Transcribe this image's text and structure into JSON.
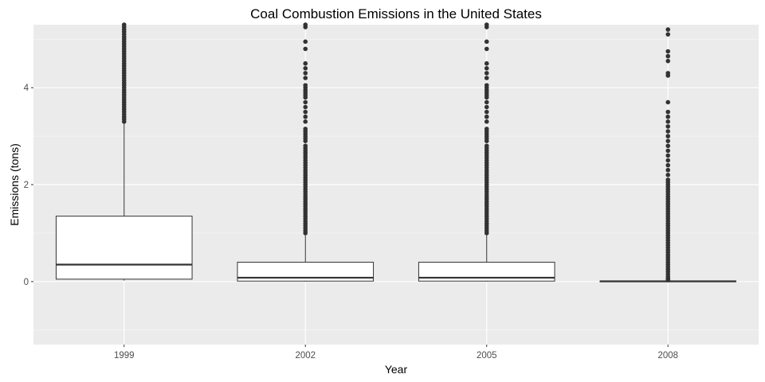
{
  "chart_data": {
    "type": "box",
    "title": "Coal Combustion Emissions in the United States",
    "xlabel": "Year",
    "ylabel": "Emissions (tons)",
    "categories": [
      "1999",
      "2002",
      "2005",
      "2008"
    ],
    "ylim": [
      -1.3,
      5.3
    ],
    "yticks": [
      0,
      2,
      4
    ],
    "grid": true,
    "legend": "none",
    "boxes": [
      {
        "category": "1999",
        "min": 0.02,
        "q1": 0.05,
        "median": 0.35,
        "q3": 1.35,
        "whisker_high": 3.28,
        "outliers": [
          3.3,
          3.35,
          3.4,
          3.45,
          3.5,
          3.55,
          3.6,
          3.65,
          3.7,
          3.75,
          3.8,
          3.85,
          3.9,
          3.95,
          4.0,
          4.05,
          4.1,
          4.15,
          4.2,
          4.25,
          4.3,
          4.35,
          4.4,
          4.45,
          4.5,
          4.55,
          4.6,
          4.65,
          4.7,
          4.75,
          4.8,
          4.85,
          4.9,
          4.95,
          5.0,
          5.05,
          5.1,
          5.15,
          5.2,
          5.25,
          5.3
        ]
      },
      {
        "category": "2002",
        "min": 0.0,
        "q1": 0.01,
        "median": 0.08,
        "q3": 0.4,
        "whisker_high": 0.98,
        "outliers": [
          1.0,
          1.05,
          1.1,
          1.15,
          1.2,
          1.25,
          1.3,
          1.35,
          1.4,
          1.45,
          1.5,
          1.55,
          1.6,
          1.65,
          1.7,
          1.75,
          1.8,
          1.85,
          1.9,
          1.95,
          2.0,
          2.05,
          2.1,
          2.15,
          2.2,
          2.25,
          2.3,
          2.35,
          2.4,
          2.45,
          2.5,
          2.55,
          2.6,
          2.65,
          2.7,
          2.75,
          2.8,
          2.9,
          2.95,
          3.0,
          3.05,
          3.1,
          3.15,
          3.3,
          3.4,
          3.5,
          3.6,
          3.7,
          3.8,
          3.85,
          3.9,
          3.95,
          4.0,
          4.05,
          4.2,
          4.3,
          4.4,
          4.5,
          4.8,
          4.95,
          5.25,
          5.3
        ]
      },
      {
        "category": "2005",
        "min": 0.0,
        "q1": 0.01,
        "median": 0.08,
        "q3": 0.4,
        "whisker_high": 0.98,
        "outliers": [
          1.0,
          1.05,
          1.1,
          1.15,
          1.2,
          1.25,
          1.3,
          1.35,
          1.4,
          1.45,
          1.5,
          1.55,
          1.6,
          1.65,
          1.7,
          1.75,
          1.8,
          1.85,
          1.9,
          1.95,
          2.0,
          2.05,
          2.1,
          2.15,
          2.2,
          2.25,
          2.3,
          2.35,
          2.4,
          2.45,
          2.5,
          2.55,
          2.6,
          2.65,
          2.7,
          2.75,
          2.8,
          2.9,
          2.95,
          3.0,
          3.05,
          3.1,
          3.15,
          3.3,
          3.4,
          3.5,
          3.6,
          3.7,
          3.8,
          3.85,
          3.9,
          3.95,
          4.0,
          4.05,
          4.2,
          4.3,
          4.4,
          4.5,
          4.8,
          4.95,
          5.25,
          5.3
        ]
      },
      {
        "category": "2008",
        "min": 0.0,
        "q1": 0.0,
        "median": 0.005,
        "q3": 0.01,
        "whisker_high": 0.01,
        "outliers": [
          0.03,
          0.06,
          0.1,
          0.15,
          0.2,
          0.25,
          0.3,
          0.35,
          0.4,
          0.45,
          0.5,
          0.55,
          0.6,
          0.65,
          0.7,
          0.75,
          0.8,
          0.85,
          0.9,
          0.95,
          1.0,
          1.05,
          1.1,
          1.15,
          1.2,
          1.25,
          1.3,
          1.35,
          1.4,
          1.45,
          1.5,
          1.55,
          1.6,
          1.65,
          1.7,
          1.75,
          1.8,
          1.85,
          1.9,
          1.95,
          2.0,
          2.05,
          2.1,
          2.2,
          2.3,
          2.4,
          2.5,
          2.6,
          2.7,
          2.8,
          2.9,
          3.0,
          3.1,
          3.2,
          3.3,
          3.4,
          3.5,
          3.7,
          4.25,
          4.3,
          4.55,
          4.65,
          4.75,
          5.1,
          5.2
        ]
      }
    ]
  },
  "colors": {
    "panel_bg": "#ebebeb",
    "grid_major": "#ffffff",
    "grid_minor": "#f5f5f5",
    "box_fill": "#ffffff",
    "box_stroke": "#333333",
    "outlier": "#333333",
    "tick": "#333333"
  }
}
